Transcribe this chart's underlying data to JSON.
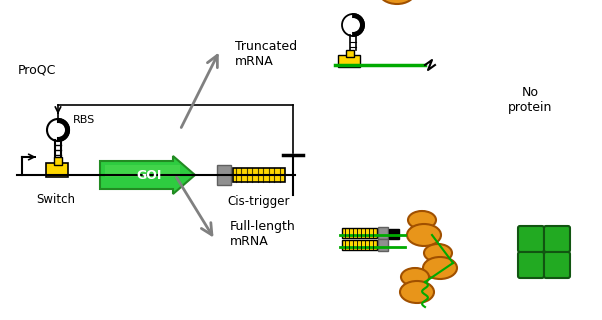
{
  "bg_color": "#ffffff",
  "yellow": "#FFD700",
  "green_dark": "#228B22",
  "green_light": "#32CD32",
  "green_mRNA": "#00AA00",
  "orange": "#E8951A",
  "gray": "#909090",
  "red": "#CC0000",
  "black": "#000000",
  "text_proqc": "ProQC",
  "text_rbs": "RBS",
  "text_goi": "GOI",
  "text_switch": "Switch",
  "text_cistrigger": "Cis-trigger",
  "text_truncated": "Truncated\nmRNA",
  "text_fulllength": "Full-length\nmRNA",
  "text_noprotein": "No\nprotein"
}
